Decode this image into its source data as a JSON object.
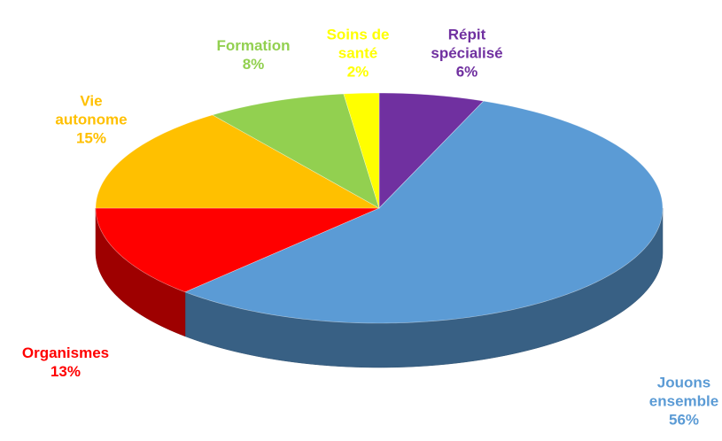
{
  "chart_data": {
    "type": "pie3d",
    "categories": [
      "Répit\nspécialisé",
      "Jouons\nensemble",
      "Organismes",
      "Vie\nautonome",
      "Formation",
      "Soins de\nsanté"
    ],
    "values": [
      6,
      56,
      13,
      15,
      8,
      2
    ],
    "value_labels": [
      "6%",
      "56%",
      "13%",
      "15%",
      "8%",
      "2%"
    ],
    "colors": [
      "#7030a0",
      "#5b9bd5",
      "#ff0000",
      "#ffc000",
      "#92d050",
      "#ffff00"
    ]
  }
}
